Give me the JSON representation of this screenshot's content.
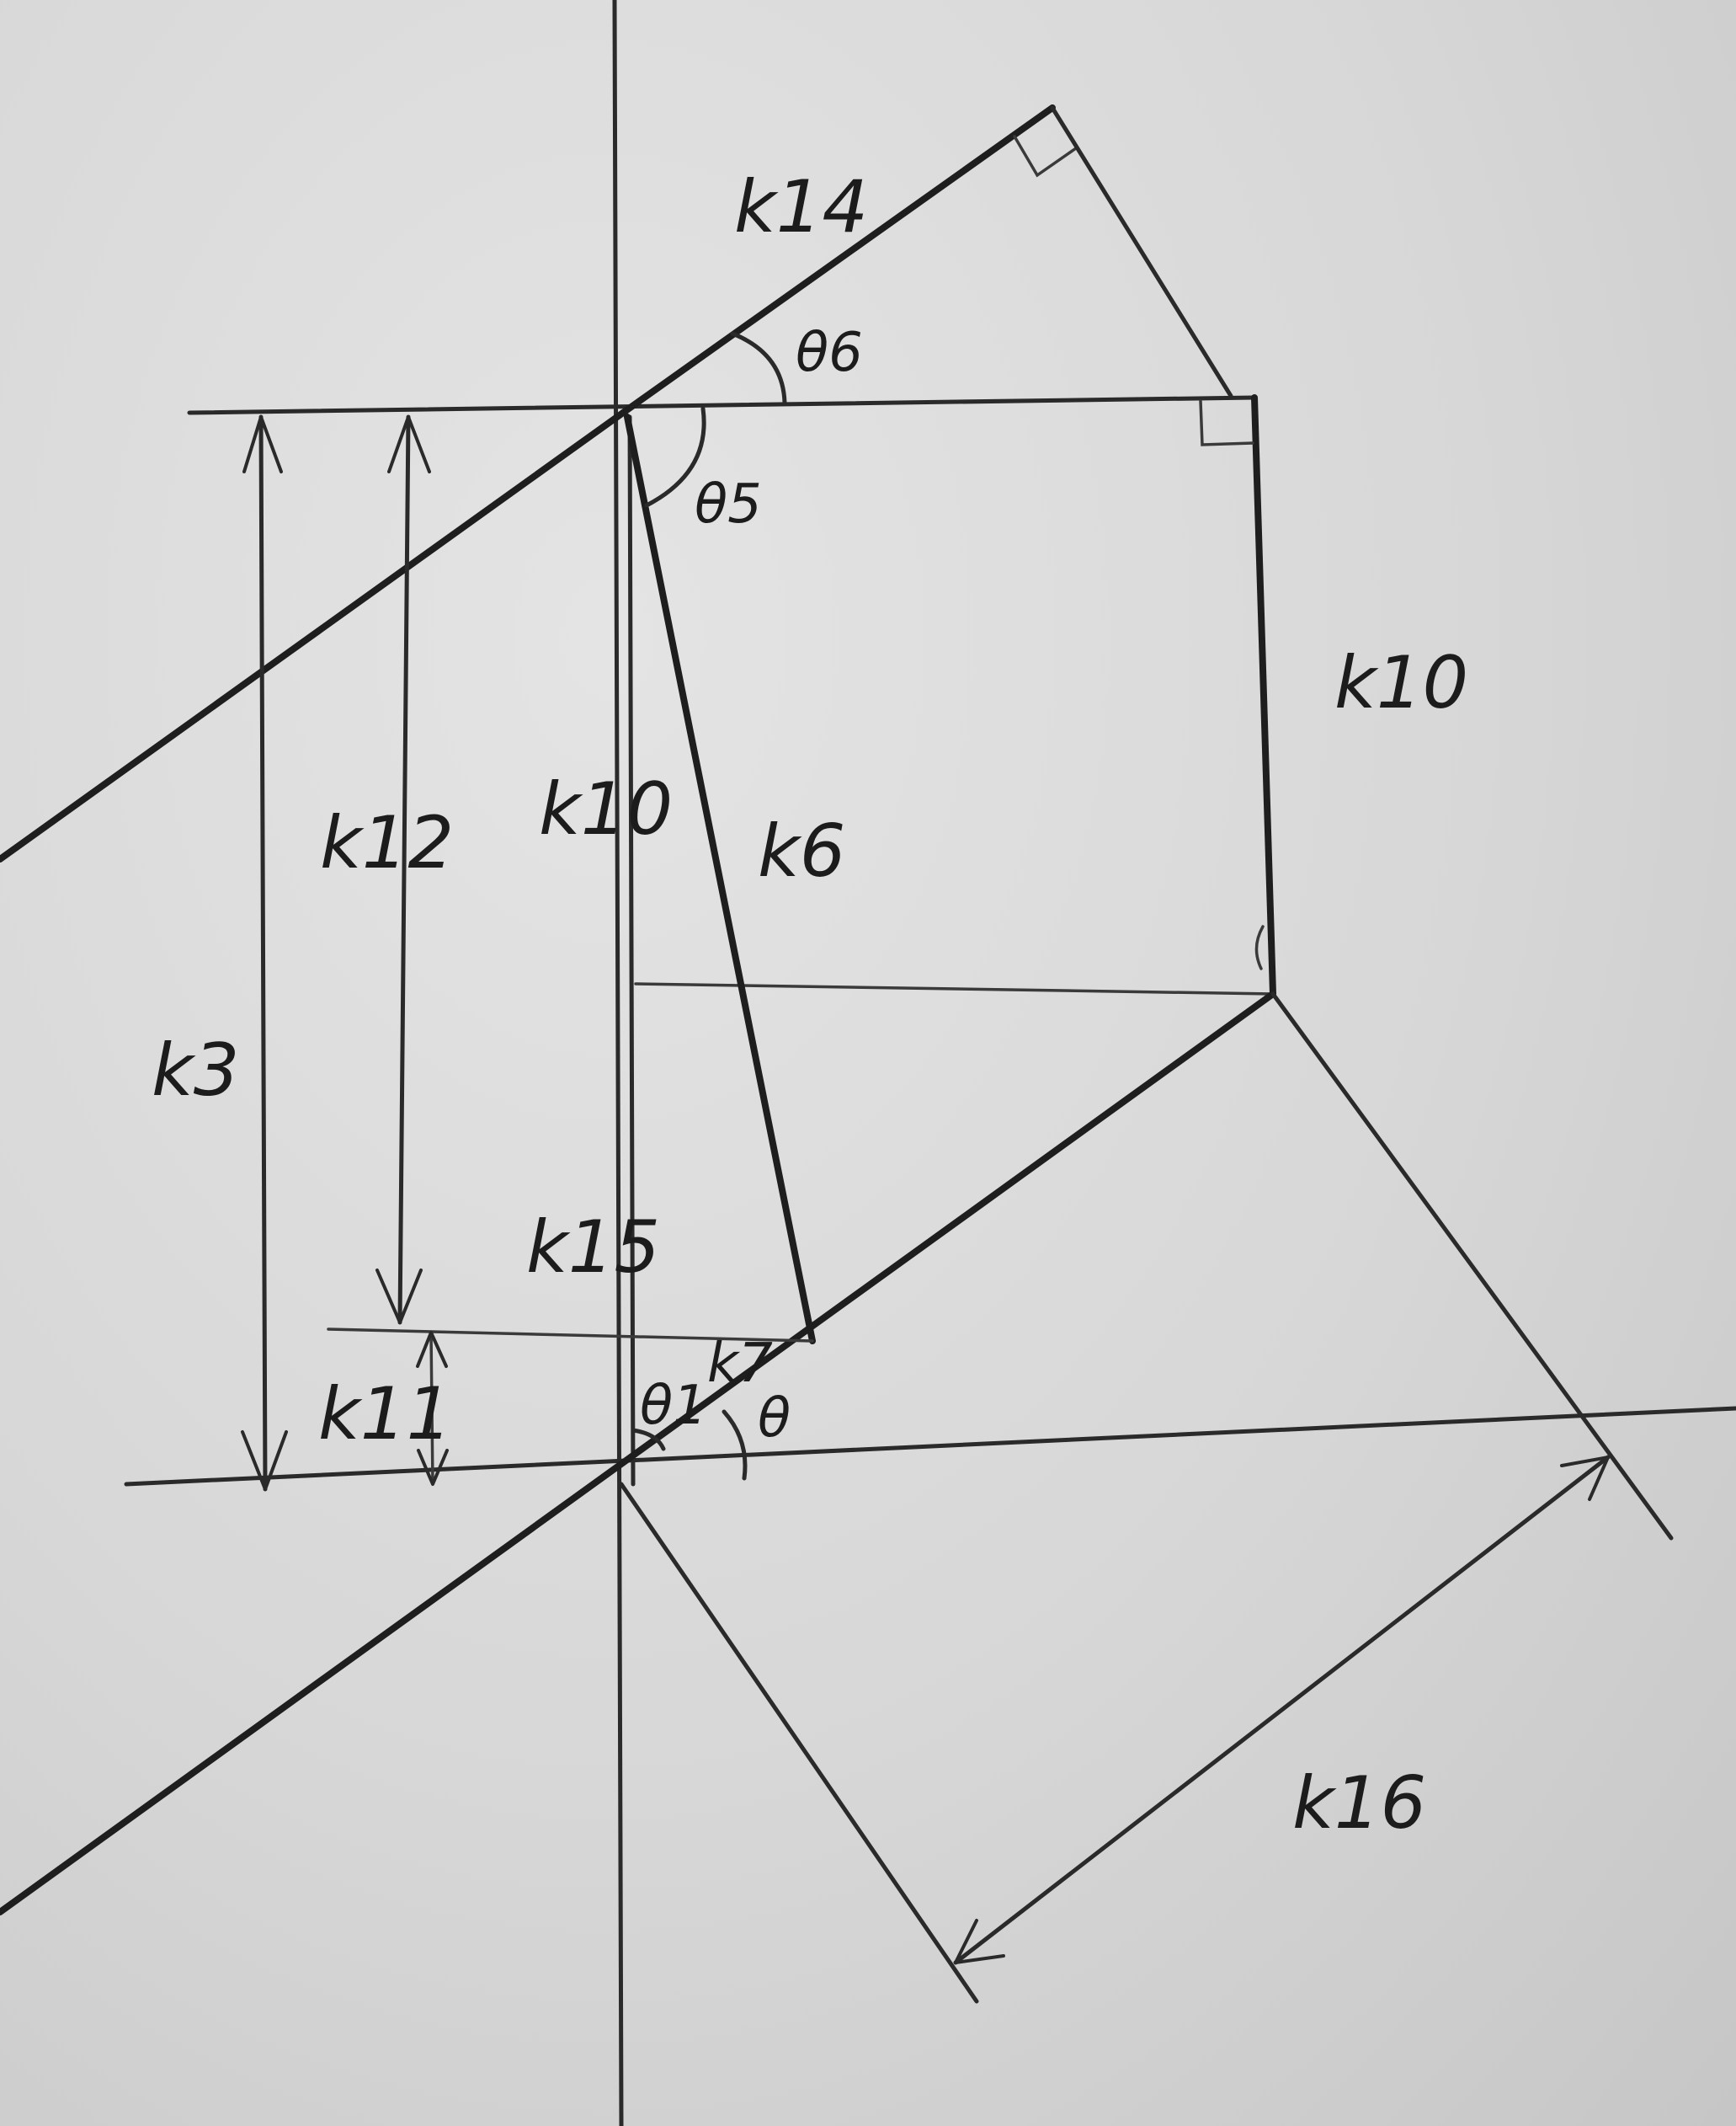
{
  "labels": {
    "k14": "k14",
    "theta6": "θ6",
    "theta5": "θ5",
    "k10_right": "k10",
    "k10_left": "k10",
    "k6": "k6",
    "k12": "k12",
    "k3": "k3",
    "k15": "k15",
    "k7": "k7",
    "k11": "k11",
    "theta1": "θ1",
    "theta": "θ",
    "k16": "k16"
  }
}
